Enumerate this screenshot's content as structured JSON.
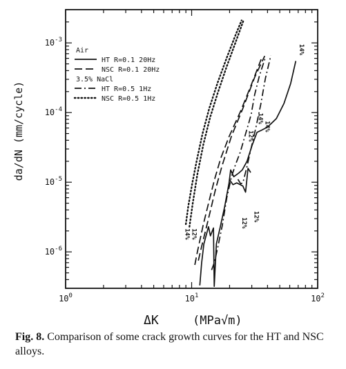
{
  "chart_data": {
    "type": "line",
    "xscale": "log",
    "yscale": "log",
    "xlim": [
      1,
      100
    ],
    "ylim": [
      3e-07,
      0.003
    ],
    "xlabel": "ΔK",
    "xunit": "(MPa√m)",
    "ylabel": "da/dN (mm/cycle)",
    "x_tick_labels": [
      {
        "value": 1,
        "base": "10",
        "exp": "0"
      },
      {
        "value": 10,
        "base": "10",
        "exp": "1"
      },
      {
        "value": 100,
        "base": "10",
        "exp": "2"
      }
    ],
    "y_tick_labels": [
      {
        "value": 1e-06,
        "base": "10",
        "exp": "-6"
      },
      {
        "value": 1e-05,
        "base": "10",
        "exp": "-5"
      },
      {
        "value": 0.0001,
        "base": "10",
        "exp": "-4"
      },
      {
        "value": 0.001,
        "base": "10",
        "exp": "-3"
      }
    ],
    "legend": {
      "groups": [
        {
          "title": "Air",
          "entries": [
            {
              "label": "HT  R=0.1  20Hz",
              "style": "solid"
            },
            {
              "label": "NSC  R=0.1  20Hz",
              "style": "dashed"
            }
          ]
        },
        {
          "title": "3.5% NaCl",
          "entries": [
            {
              "label": "HT  R=0.5  1Hz",
              "style": "dashdot"
            },
            {
              "label": "NSC  R=0.5  1Hz",
              "style": "dotted"
            }
          ]
        }
      ]
    },
    "series": [
      {
        "style": "solid",
        "points": [
          [
            11.6,
            3.3e-07
          ],
          [
            12.0,
            7e-07
          ],
          [
            12.5,
            1.3e-06
          ],
          [
            13.6,
            2.3e-06
          ],
          [
            14.1,
            1.7e-06
          ],
          [
            14.9,
            2.2e-06
          ],
          [
            15.1,
            3.2e-07
          ],
          [
            15.7,
            1.3e-06
          ],
          [
            16.8,
            2.2e-06
          ],
          [
            18.3,
            4.5e-06
          ],
          [
            19.8,
            9.7e-06
          ],
          [
            20.4,
            1.5e-05
          ],
          [
            21.6,
            1.2e-05
          ],
          [
            23.6,
            1.35e-05
          ],
          [
            25.2,
            1.5e-05
          ],
          [
            27.5,
            2e-05
          ],
          [
            30.2,
            3.4e-05
          ],
          [
            33.0,
            5.2e-05
          ],
          [
            36.0,
            5.6e-05
          ],
          [
            40.0,
            6.2e-05
          ],
          [
            47.0,
            8.2e-05
          ],
          [
            54.0,
            0.000135
          ],
          [
            61.0,
            0.00026
          ],
          [
            67.0,
            0.00055
          ]
        ]
      },
      {
        "style": "solid",
        "points": [
          [
            19.9,
            1.1e-05
          ],
          [
            21.3,
            9.2e-06
          ],
          [
            22.8,
            9.8e-06
          ],
          [
            25.5,
            8.8e-06
          ],
          [
            26.8,
            7.2e-06
          ],
          [
            28.0,
            1.58e-05
          ],
          [
            29.4,
            1.38e-05
          ]
        ]
      },
      {
        "style": "dashdot",
        "points": [
          [
            14.4,
            5.5e-07
          ],
          [
            15.2,
            7.2e-07
          ],
          [
            16.0,
            1.1e-06
          ],
          [
            17.5,
            2.4e-06
          ],
          [
            19.0,
            6e-06
          ],
          [
            20.7,
            1.2e-05
          ],
          [
            22.3,
            1.8e-05
          ],
          [
            24.3,
            2.7e-05
          ],
          [
            26.3,
            4.4e-05
          ],
          [
            28.2,
            6.8e-05
          ],
          [
            29.7,
            9.5e-05
          ],
          [
            31.6,
            0.00018
          ],
          [
            34.5,
            0.00034
          ],
          [
            38.5,
            0.00062
          ]
        ]
      },
      {
        "style": "dashdot",
        "points": [
          [
            23.3,
            1.1e-05
          ],
          [
            24.5,
            9.5e-06
          ],
          [
            25.5,
            9.8e-06
          ],
          [
            27.3,
            1.6e-05
          ],
          [
            29.8,
            3.2e-05
          ],
          [
            32.3,
            6e-05
          ],
          [
            35.3,
            0.00013
          ],
          [
            38.5,
            0.00031
          ],
          [
            42.5,
            0.00066
          ]
        ]
      },
      {
        "style": "dashed",
        "points": [
          [
            11.3,
            7.5e-07
          ],
          [
            12.0,
            1.2e-06
          ],
          [
            13.6,
            3e-06
          ],
          [
            15.5,
            8e-06
          ],
          [
            17.4,
            1.7e-05
          ],
          [
            20.7,
            4.6e-05
          ],
          [
            25.5,
            0.000115
          ],
          [
            31.6,
            0.00032
          ],
          [
            38.0,
            0.00065
          ]
        ]
      },
      {
        "style": "dashed",
        "points": [
          [
            10.6,
            6.5e-07
          ],
          [
            11.1,
            1e-06
          ],
          [
            12.4,
            2.5e-06
          ],
          [
            13.8,
            5.5e-06
          ],
          [
            15.2,
            1.1e-05
          ],
          [
            17.0,
            2.2e-05
          ],
          [
            19.8,
            4.5e-05
          ],
          [
            24.5,
            0.000105
          ],
          [
            29.2,
            0.00023
          ],
          [
            35.6,
            0.00058
          ]
        ]
      },
      {
        "style": "dotted",
        "points": [
          [
            9.6,
            2.3e-06
          ],
          [
            10.2,
            5e-06
          ],
          [
            11.1,
            1.3e-05
          ],
          [
            12.4,
            3.5e-05
          ],
          [
            14.0,
            8.5e-05
          ],
          [
            16.1,
            0.00019
          ],
          [
            18.9,
            0.00045
          ],
          [
            22.0,
            0.00095
          ],
          [
            25.8,
            0.0021
          ]
        ]
      },
      {
        "style": "dotted",
        "points": [
          [
            9.0,
            2.5e-06
          ],
          [
            9.4,
            4.5e-06
          ],
          [
            10.1,
            9.5e-06
          ],
          [
            11.0,
            2.1e-05
          ],
          [
            12.2,
            5e-05
          ],
          [
            13.8,
            0.000115
          ],
          [
            16.1,
            0.00027
          ],
          [
            19.1,
            0.00063
          ],
          [
            22.3,
            0.0013
          ],
          [
            24.9,
            0.0021
          ]
        ]
      }
    ],
    "annotations": [
      {
        "text": "14%",
        "x": 72,
        "y": 0.0008,
        "rotate": 90
      },
      {
        "text": "14%",
        "x": 34,
        "y": 8.2e-05,
        "rotate": 90
      },
      {
        "text": "14%",
        "x": 38.5,
        "y": 6.3e-05,
        "rotate": 90
      },
      {
        "text": "12%",
        "x": 28.5,
        "y": 4.6e-05,
        "rotate": 90
      },
      {
        "text": "12%",
        "x": 31.5,
        "y": 3.2e-06,
        "rotate": 90
      },
      {
        "text": "12%",
        "x": 25.2,
        "y": 2.6e-06,
        "rotate": 90
      },
      {
        "text": "14%",
        "x": 8.9,
        "y": 1.8e-06,
        "rotate": 90
      },
      {
        "text": "12%",
        "x": 10.1,
        "y": 1.8e-06,
        "rotate": 90
      }
    ]
  },
  "caption": {
    "label": "Fig. 8.",
    "text": " Comparison of some crack growth curves for the HT and NSC alloys."
  }
}
